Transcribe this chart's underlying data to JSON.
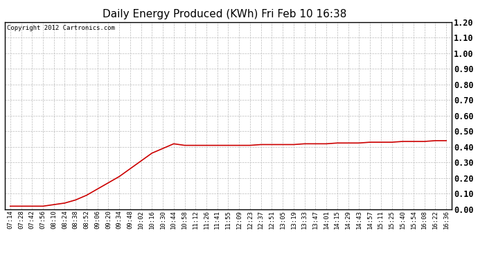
{
  "title": "Daily Energy Produced (KWh) Fri Feb 10 16:38",
  "copyright": "Copyright 2012 Cartronics.com",
  "ylim": [
    0.0,
    1.2
  ],
  "yticks": [
    0.0,
    0.1,
    0.2,
    0.3,
    0.4,
    0.5,
    0.6,
    0.7,
    0.8,
    0.9,
    1.0,
    1.1,
    1.2
  ],
  "line_color": "#cc0000",
  "background_color": "#ffffff",
  "grid_color": "#bbbbbb",
  "title_fontsize": 11,
  "copyright_fontsize": 6.5,
  "tick_fontsize": 6.5,
  "ytick_fontsize": 8.5,
  "x_labels": [
    "07:14",
    "07:28",
    "07:42",
    "07:56",
    "08:10",
    "08:24",
    "08:38",
    "08:52",
    "09:06",
    "09:20",
    "09:34",
    "09:48",
    "10:02",
    "10:16",
    "10:30",
    "10:44",
    "10:58",
    "11:12",
    "11:26",
    "11:41",
    "11:55",
    "12:09",
    "12:23",
    "12:37",
    "12:51",
    "13:05",
    "13:19",
    "13:33",
    "13:47",
    "14:01",
    "14:15",
    "14:29",
    "14:43",
    "14:57",
    "15:11",
    "15:25",
    "15:40",
    "15:54",
    "16:08",
    "16:22",
    "16:36"
  ],
  "y_values": [
    0.02,
    0.02,
    0.02,
    0.02,
    0.03,
    0.04,
    0.06,
    0.09,
    0.13,
    0.17,
    0.21,
    0.26,
    0.31,
    0.36,
    0.39,
    0.42,
    0.41,
    0.41,
    0.41,
    0.41,
    0.41,
    0.41,
    0.41,
    0.415,
    0.415,
    0.415,
    0.415,
    0.42,
    0.42,
    0.42,
    0.425,
    0.425,
    0.425,
    0.43,
    0.43,
    0.43,
    0.435,
    0.435,
    0.435,
    0.44,
    0.44
  ]
}
